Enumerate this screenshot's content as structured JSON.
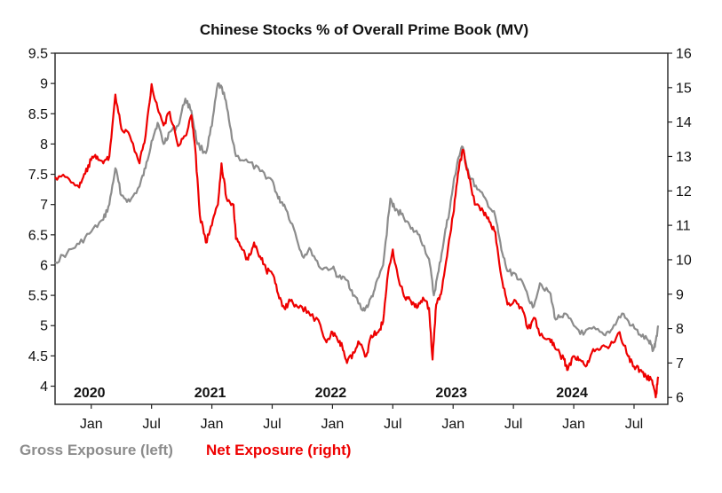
{
  "chart_data": {
    "type": "line",
    "title": "Chinese Stocks % of Overall Prime Book (MV)",
    "x_ticks": [
      {
        "label": "Jan",
        "date": 2020.0
      },
      {
        "label": "Jul",
        "date": 2020.5
      },
      {
        "label": "Jan",
        "date": 2021.0
      },
      {
        "label": "Jul",
        "date": 2021.5
      },
      {
        "label": "Jan",
        "date": 2022.0
      },
      {
        "label": "Jul",
        "date": 2022.5
      },
      {
        "label": "Jan",
        "date": 2023.0
      },
      {
        "label": "Jul",
        "date": 2023.5
      },
      {
        "label": "Jan",
        "date": 2024.0
      },
      {
        "label": "Jul",
        "date": 2024.5
      }
    ],
    "year_labels": [
      {
        "label": "2020",
        "date": 2020.0
      },
      {
        "label": "2021",
        "date": 2021.0
      },
      {
        "label": "2022",
        "date": 2022.0
      },
      {
        "label": "2023",
        "date": 2023.0
      },
      {
        "label": "2024",
        "date": 2024.0
      }
    ],
    "xlim": [
      2019.7,
      2024.78
    ],
    "y_left": {
      "lim": [
        3.7,
        9.5
      ],
      "ticks": [
        "4",
        "4.5",
        "5",
        "5.5",
        "6",
        "6.5",
        "7",
        "7.5",
        "8",
        "8.5",
        "9",
        "9.5"
      ]
    },
    "y_right": {
      "lim": [
        5.8,
        16
      ],
      "ticks": [
        "6",
        "7",
        "8",
        "9",
        "10",
        "11",
        "12",
        "13",
        "14",
        "15",
        "16"
      ]
    },
    "series": [
      {
        "name": "Gross Exposure (left)",
        "axis": "left",
        "color": "#8c8c8c",
        "points": [
          [
            2019.7,
            6.05
          ],
          [
            2019.8,
            6.2
          ],
          [
            2019.9,
            6.35
          ],
          [
            2020.0,
            6.55
          ],
          [
            2020.1,
            6.75
          ],
          [
            2020.15,
            7.0
          ],
          [
            2020.2,
            7.6
          ],
          [
            2020.25,
            7.15
          ],
          [
            2020.32,
            7.05
          ],
          [
            2020.4,
            7.3
          ],
          [
            2020.45,
            7.6
          ],
          [
            2020.5,
            8.05
          ],
          [
            2020.55,
            8.35
          ],
          [
            2020.6,
            8.0
          ],
          [
            2020.65,
            8.2
          ],
          [
            2020.72,
            8.3
          ],
          [
            2020.78,
            8.75
          ],
          [
            2020.83,
            8.55
          ],
          [
            2020.88,
            8.0
          ],
          [
            2020.95,
            7.85
          ],
          [
            2021.0,
            8.3
          ],
          [
            2021.05,
            9.0
          ],
          [
            2021.1,
            8.85
          ],
          [
            2021.15,
            8.3
          ],
          [
            2021.2,
            7.8
          ],
          [
            2021.3,
            7.7
          ],
          [
            2021.4,
            7.55
          ],
          [
            2021.5,
            7.4
          ],
          [
            2021.55,
            7.1
          ],
          [
            2021.6,
            7.0
          ],
          [
            2021.68,
            6.6
          ],
          [
            2021.75,
            6.15
          ],
          [
            2021.82,
            6.25
          ],
          [
            2021.9,
            5.95
          ],
          [
            2022.0,
            5.95
          ],
          [
            2022.05,
            5.8
          ],
          [
            2022.12,
            5.75
          ],
          [
            2022.18,
            5.5
          ],
          [
            2022.25,
            5.25
          ],
          [
            2022.3,
            5.35
          ],
          [
            2022.35,
            5.6
          ],
          [
            2022.42,
            6.0
          ],
          [
            2022.48,
            7.1
          ],
          [
            2022.52,
            6.9
          ],
          [
            2022.58,
            6.85
          ],
          [
            2022.65,
            6.6
          ],
          [
            2022.72,
            6.5
          ],
          [
            2022.8,
            6.1
          ],
          [
            2022.84,
            5.5
          ],
          [
            2022.88,
            5.9
          ],
          [
            2022.93,
            6.5
          ],
          [
            2022.97,
            6.9
          ],
          [
            2023.0,
            7.3
          ],
          [
            2023.04,
            7.75
          ],
          [
            2023.08,
            7.95
          ],
          [
            2023.13,
            7.5
          ],
          [
            2023.2,
            7.25
          ],
          [
            2023.28,
            7.05
          ],
          [
            2023.35,
            6.8
          ],
          [
            2023.4,
            6.25
          ],
          [
            2023.45,
            5.9
          ],
          [
            2023.52,
            5.85
          ],
          [
            2023.6,
            5.6
          ],
          [
            2023.66,
            5.3
          ],
          [
            2023.72,
            5.7
          ],
          [
            2023.8,
            5.55
          ],
          [
            2023.85,
            5.1
          ],
          [
            2023.92,
            5.2
          ],
          [
            2024.0,
            5.0
          ],
          [
            2024.08,
            4.85
          ],
          [
            2024.15,
            4.95
          ],
          [
            2024.25,
            4.85
          ],
          [
            2024.32,
            4.95
          ],
          [
            2024.4,
            5.2
          ],
          [
            2024.48,
            5.0
          ],
          [
            2024.55,
            4.85
          ],
          [
            2024.62,
            4.75
          ],
          [
            2024.66,
            4.6
          ],
          [
            2024.68,
            4.75
          ],
          [
            2024.7,
            5.0
          ]
        ]
      },
      {
        "name": "Net Exposure (right)",
        "axis": "right",
        "color": "#ee0000",
        "points": [
          [
            2019.7,
            12.4
          ],
          [
            2019.8,
            12.4
          ],
          [
            2019.9,
            12.1
          ],
          [
            2019.95,
            12.5
          ],
          [
            2020.0,
            12.9
          ],
          [
            2020.05,
            13.0
          ],
          [
            2020.1,
            12.8
          ],
          [
            2020.15,
            13.0
          ],
          [
            2020.2,
            14.8
          ],
          [
            2020.25,
            13.8
          ],
          [
            2020.32,
            13.6
          ],
          [
            2020.4,
            12.8
          ],
          [
            2020.45,
            13.6
          ],
          [
            2020.5,
            15.1
          ],
          [
            2020.55,
            14.4
          ],
          [
            2020.6,
            13.9
          ],
          [
            2020.65,
            14.3
          ],
          [
            2020.72,
            13.3
          ],
          [
            2020.78,
            13.6
          ],
          [
            2020.83,
            14.2
          ],
          [
            2020.86,
            13.3
          ],
          [
            2020.9,
            11.3
          ],
          [
            2020.95,
            10.5
          ],
          [
            2021.0,
            11.0
          ],
          [
            2021.05,
            11.6
          ],
          [
            2021.08,
            12.8
          ],
          [
            2021.12,
            11.8
          ],
          [
            2021.18,
            11.6
          ],
          [
            2021.2,
            10.6
          ],
          [
            2021.25,
            10.3
          ],
          [
            2021.3,
            10.0
          ],
          [
            2021.35,
            10.5
          ],
          [
            2021.4,
            10.1
          ],
          [
            2021.45,
            9.7
          ],
          [
            2021.5,
            9.6
          ],
          [
            2021.55,
            9.0
          ],
          [
            2021.6,
            8.6
          ],
          [
            2021.65,
            8.8
          ],
          [
            2021.72,
            8.6
          ],
          [
            2021.8,
            8.5
          ],
          [
            2021.9,
            8.1
          ],
          [
            2021.95,
            7.6
          ],
          [
            2022.0,
            7.9
          ],
          [
            2022.05,
            7.6
          ],
          [
            2022.08,
            7.5
          ],
          [
            2022.12,
            7.0
          ],
          [
            2022.18,
            7.3
          ],
          [
            2022.22,
            7.6
          ],
          [
            2022.28,
            7.2
          ],
          [
            2022.32,
            7.8
          ],
          [
            2022.38,
            7.9
          ],
          [
            2022.42,
            8.2
          ],
          [
            2022.46,
            9.6
          ],
          [
            2022.5,
            10.3
          ],
          [
            2022.55,
            9.4
          ],
          [
            2022.6,
            8.9
          ],
          [
            2022.65,
            8.8
          ],
          [
            2022.7,
            8.6
          ],
          [
            2022.75,
            8.9
          ],
          [
            2022.8,
            8.6
          ],
          [
            2022.83,
            7.1
          ],
          [
            2022.86,
            8.7
          ],
          [
            2022.9,
            9.0
          ],
          [
            2022.95,
            10.1
          ],
          [
            2023.0,
            11.3
          ],
          [
            2023.04,
            12.5
          ],
          [
            2023.08,
            13.2
          ],
          [
            2023.12,
            12.6
          ],
          [
            2023.18,
            11.6
          ],
          [
            2023.25,
            11.4
          ],
          [
            2023.3,
            11.1
          ],
          [
            2023.35,
            10.8
          ],
          [
            2023.4,
            9.5
          ],
          [
            2023.45,
            8.7
          ],
          [
            2023.52,
            8.8
          ],
          [
            2023.58,
            8.5
          ],
          [
            2023.62,
            8.0
          ],
          [
            2023.68,
            8.3
          ],
          [
            2023.72,
            7.8
          ],
          [
            2023.8,
            7.7
          ],
          [
            2023.85,
            7.4
          ],
          [
            2023.92,
            7.1
          ],
          [
            2023.95,
            6.8
          ],
          [
            2024.0,
            7.2
          ],
          [
            2024.05,
            7.1
          ],
          [
            2024.1,
            6.9
          ],
          [
            2024.15,
            7.3
          ],
          [
            2024.22,
            7.4
          ],
          [
            2024.3,
            7.5
          ],
          [
            2024.38,
            7.9
          ],
          [
            2024.45,
            7.2
          ],
          [
            2024.5,
            6.9
          ],
          [
            2024.55,
            6.8
          ],
          [
            2024.6,
            6.6
          ],
          [
            2024.65,
            6.5
          ],
          [
            2024.68,
            6.0
          ],
          [
            2024.7,
            6.6
          ]
        ]
      }
    ],
    "legend": [
      {
        "label": "Gross Exposure (left)",
        "color": "#8c8c8c"
      },
      {
        "label": "Net Exposure (right)",
        "color": "#ee0000"
      }
    ],
    "legend_position": "bottom-left"
  }
}
